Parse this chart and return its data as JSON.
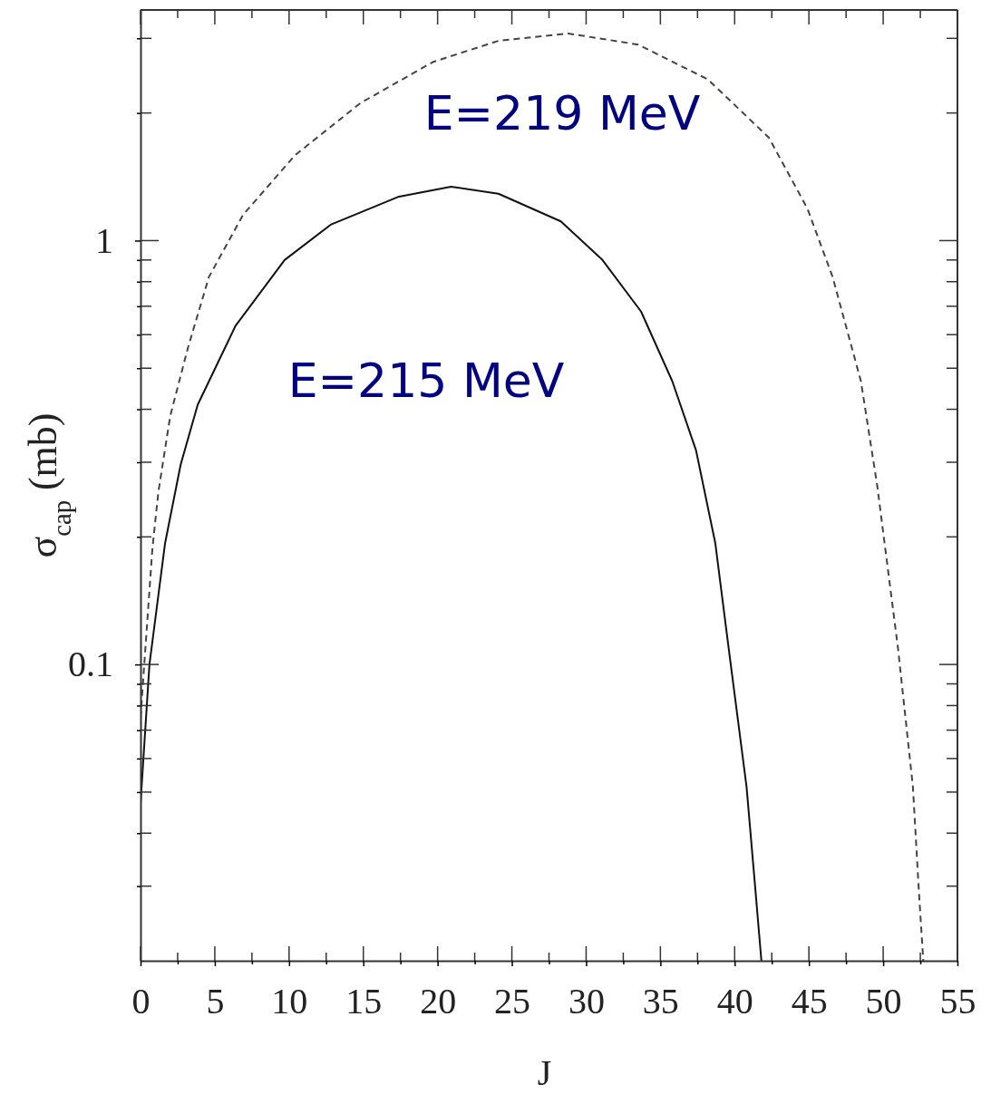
{
  "chart_data": {
    "type": "line",
    "xlabel": "J",
    "ylabel": "σ$_{cap}$ (mb)",
    "log": "y",
    "xlim": [
      0,
      55
    ],
    "xticks": [
      0,
      {
        "value": 2.5,
        "label": null
      },
      5,
      {
        "value": 7.5,
        "label": null
      },
      10,
      {
        "value": 12.5,
        "label": null
      },
      15,
      {
        "value": 17.5,
        "label": null
      },
      20,
      {
        "value": 22.5,
        "label": null
      },
      25,
      {
        "value": 27.5,
        "label": null
      },
      30,
      {
        "value": 32.5,
        "label": null
      },
      35,
      {
        "value": 37.5,
        "label": null
      },
      40,
      {
        "value": 42.5,
        "label": null
      },
      45,
      {
        "value": 47.5,
        "label": null
      },
      50,
      {
        "value": 52.5,
        "label": null
      },
      55
    ],
    "ylim": [
      0.02,
      3.5
    ],
    "yticks": [
      {
        "value": 0.03,
        "label": null
      },
      {
        "value": 0.04,
        "label": null
      },
      {
        "value": 0.05,
        "label": null
      },
      {
        "value": 0.06,
        "label": null
      },
      {
        "value": 0.07,
        "label": null
      },
      {
        "value": 0.08,
        "label": null
      },
      {
        "value": 0.09,
        "label": null
      },
      0.1,
      {
        "value": 0.2,
        "label": null
      },
      {
        "value": 0.3,
        "label": null
      },
      {
        "value": 0.4,
        "label": null
      },
      {
        "value": 0.5,
        "label": null
      },
      {
        "value": 0.6,
        "label": null
      },
      {
        "value": 0.7,
        "label": null
      },
      {
        "value": 0.8,
        "label": null
      },
      {
        "value": 0.9,
        "label": null
      },
      1,
      {
        "value": 2,
        "label": null
      },
      {
        "value": 3,
        "label": null
      }
    ],
    "series": [
      {
        "color": "#111111",
        "line_style": "solid",
        "x": [
          0,
          0.6,
          1.65,
          2.7,
          3.85,
          6.4,
          9.7,
          12.8,
          17.4,
          20.9,
          24.1,
          28.3,
          31.1,
          33.7,
          35.8,
          37.4,
          38.7,
          39.6,
          40.8,
          41.4,
          41.8
        ],
        "values": [
          0.047,
          0.1,
          0.193,
          0.296,
          0.41,
          0.63,
          0.9,
          1.09,
          1.27,
          1.34,
          1.29,
          1.11,
          0.9,
          0.68,
          0.466,
          0.32,
          0.193,
          0.109,
          0.0515,
          0.0293,
          0.02
        ]
      },
      {
        "color": "#444444",
        "line_style": "dashed",
        "x": [
          0,
          0.8,
          1.2,
          2,
          3.2,
          4.6,
          6.9,
          10.4,
          14.8,
          19.7,
          24.1,
          28.8,
          33.5,
          38.2,
          42.3,
          44.9,
          46.6,
          48.5,
          49.6,
          51,
          52,
          52.4,
          52.7
        ],
        "values": [
          0.075,
          0.188,
          0.255,
          0.386,
          0.56,
          0.82,
          1.15,
          1.59,
          2.11,
          2.64,
          2.96,
          3.08,
          2.9,
          2.4,
          1.75,
          1.19,
          0.82,
          0.466,
          0.264,
          0.109,
          0.0515,
          0.0293,
          0.02
        ]
      }
    ],
    "annotations": [
      "E=219 MeV",
      "E=215 MeV"
    ]
  }
}
